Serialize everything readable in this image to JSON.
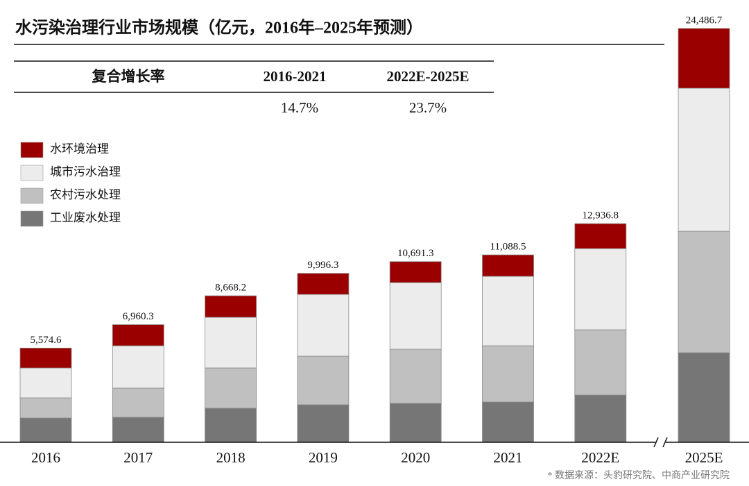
{
  "chart_data": {
    "type": "stacked_bar",
    "title": "水污染治理行业市场规模（亿元，2016年–2025年预测）",
    "cagr_table": {
      "header": [
        "复合增长率",
        "2016-2021",
        "2022E-2025E"
      ],
      "values": [
        "14.7%",
        "23.7%"
      ]
    },
    "categories": [
      "2016",
      "2017",
      "2018",
      "2019",
      "2020",
      "2021",
      "2022E",
      "2025E"
    ],
    "series": [
      {
        "name": "工业废水处理",
        "color": "#767676",
        "values": [
          1438,
          1479,
          2013,
          2218,
          2300,
          2383,
          2793,
          5299
        ]
      },
      {
        "name": "农村污水处理",
        "color": "#c0c0c0",
        "values": [
          1191,
          1725,
          2383,
          2876,
          3204,
          3327,
          3862,
          7189
        ]
      },
      {
        "name": "城市污水治理",
        "color": "#ececec",
        "values": [
          1766,
          2506,
          2999,
          3656,
          3944,
          4108,
          4806,
          8463
        ]
      },
      {
        "name": "水环境治理",
        "color": "#9b0000",
        "values": [
          1179.6,
          1250.3,
          1273.2,
          1246.3,
          1243.3,
          1270.5,
          1475.8,
          3535.7
        ]
      }
    ],
    "totals": [
      5574.6,
      6960.3,
      8668.2,
      9996.3,
      10691.3,
      11088.5,
      12936.8,
      24486.7
    ],
    "total_labels": [
      "5,574.6",
      "6,960.3",
      "8,668.2",
      "9,996.3",
      "10,691.3",
      "11,088.5",
      "12,936.8",
      "24,486.7"
    ],
    "ylim": [
      0,
      25000
    ],
    "source": "* 数据来源：头豹研究院、中商产业研究院"
  }
}
